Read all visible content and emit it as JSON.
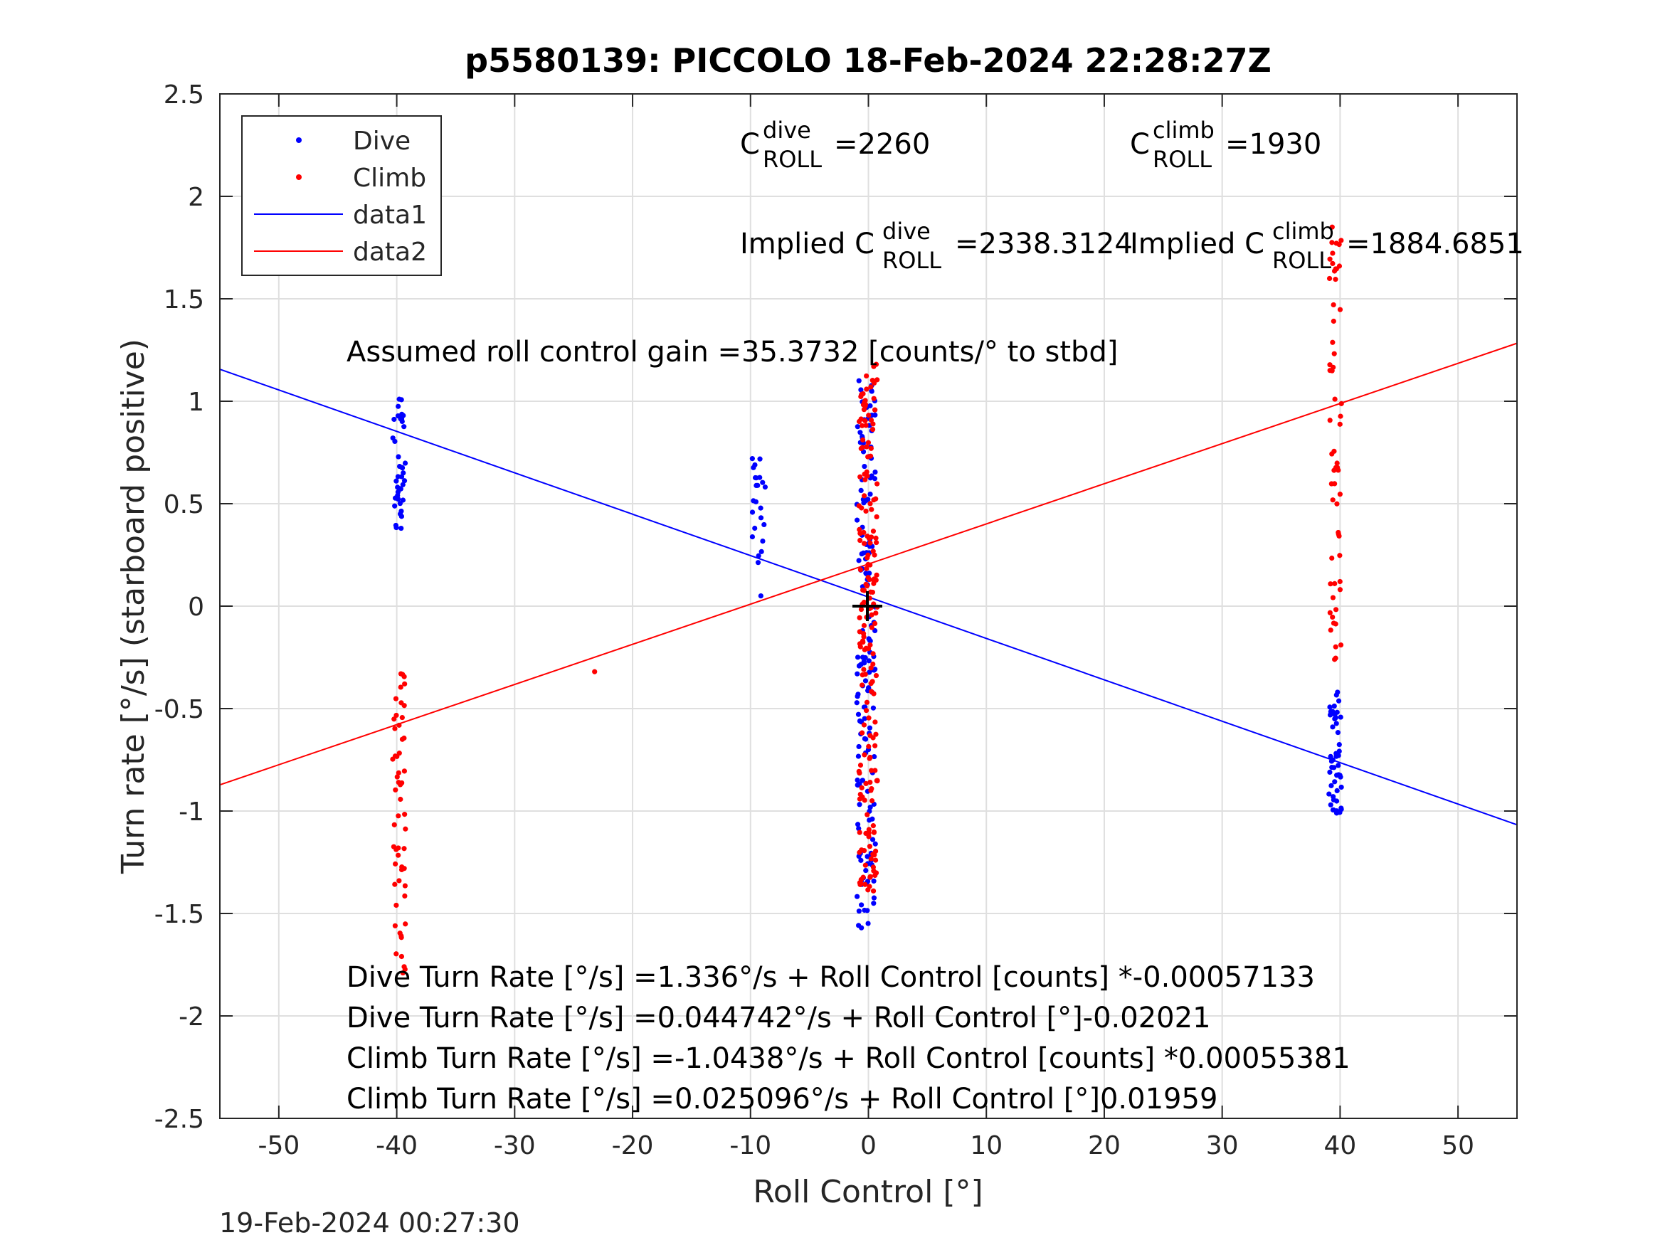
{
  "chart_data": {
    "type": "scatter",
    "title": "p5580139: PICCOLO 18-Feb-2024 22:28:27Z",
    "xlabel": "Roll Control [°]",
    "ylabel": "Turn rate [°/s] (starboard positive)",
    "xlim": [
      -55,
      55
    ],
    "ylim": [
      -2.5,
      2.5
    ],
    "x_ticks": [
      -50,
      -40,
      -30,
      -20,
      -10,
      0,
      10,
      20,
      30,
      40,
      50
    ],
    "x_tick_labels": [
      "-50",
      "-40",
      "-30",
      "-20",
      "-10",
      "0",
      "10",
      "20",
      "30",
      "40",
      "50"
    ],
    "y_ticks": [
      -2.5,
      -2,
      -1.5,
      -1,
      -0.5,
      0,
      0.5,
      1,
      1.5,
      2,
      2.5
    ],
    "y_tick_labels": [
      "-2.5",
      "-2",
      "-1.5",
      "-1",
      "-0.5",
      "0",
      "0.5",
      "1",
      "1.5",
      "2",
      "2.5"
    ],
    "grid": true,
    "legend_position": "top-left",
    "colors": {
      "dive": "#0000ff",
      "climb": "#ff0000",
      "marker": "#000000",
      "grid": "#dfdfdf"
    },
    "series": [
      {
        "name": "Dive",
        "kind": "points",
        "color": "#0000ff",
        "clusters": [
          {
            "x": -39.8,
            "ymin": 0.38,
            "ymax": 1.01,
            "n": 40
          },
          {
            "x": -9.3,
            "ymin": 0.05,
            "ymax": 0.72,
            "n": 24
          },
          {
            "x": -0.2,
            "ymin": -1.57,
            "ymax": 1.1,
            "n": 160
          },
          {
            "x": 39.6,
            "ymin": -1.01,
            "ymax": -0.42,
            "n": 50
          }
        ]
      },
      {
        "name": "Climb",
        "kind": "points",
        "color": "#ff0000",
        "clusters": [
          {
            "x": -39.8,
            "ymin": -1.79,
            "ymax": -0.33,
            "n": 55
          },
          {
            "x": -23.7,
            "ymin": -0.32,
            "ymax": -0.32,
            "n": 1
          },
          {
            "x": 0.0,
            "ymin": -1.39,
            "ymax": 1.18,
            "n": 190
          },
          {
            "x": 39.6,
            "ymin": -0.26,
            "ymax": 1.85,
            "n": 60
          }
        ]
      },
      {
        "name": "data1",
        "kind": "line",
        "color": "#0000ff",
        "x": [
          -55,
          55
        ],
        "y": [
          1.156,
          -1.067
        ]
      },
      {
        "name": "data2",
        "kind": "line",
        "color": "#ff0000",
        "x": [
          -55,
          55
        ],
        "y": [
          -0.872,
          1.283
        ]
      }
    ],
    "legend": [
      "Dive",
      "Climb",
      "data1",
      "data2"
    ],
    "annotations": {
      "c_dive": {
        "base": "C",
        "sup": "dive",
        "sub": "ROLL",
        "value": "=2260"
      },
      "c_climb": {
        "base": "C",
        "sup": "climb",
        "sub": "ROLL",
        "value": "=1930"
      },
      "implied_dive": {
        "base": "Implied C",
        "sup": "dive",
        "sub": "ROLL",
        "value": "=2338.3124"
      },
      "implied_climb": {
        "base": "Implied C",
        "sup": "climb",
        "sub": "ROLL",
        "value": "=1884.6851"
      },
      "gain": "Assumed roll control gain =35.3732 [counts/° to stbd]",
      "eq1": "Dive Turn Rate [°/s] =1.336°/s + Roll Control [counts] *-0.00057133",
      "eq2": "Dive Turn Rate [°/s] =0.044742°/s + Roll Control [°]-0.02021",
      "eq3": "Climb Turn Rate [°/s] =-1.0438°/s + Roll Control [counts] *0.00055381",
      "eq4": "Climb Turn Rate [°/s] =0.025096°/s + Roll Control [°]0.01959"
    },
    "timestamp": "19-Feb-2024 00:27:30"
  }
}
